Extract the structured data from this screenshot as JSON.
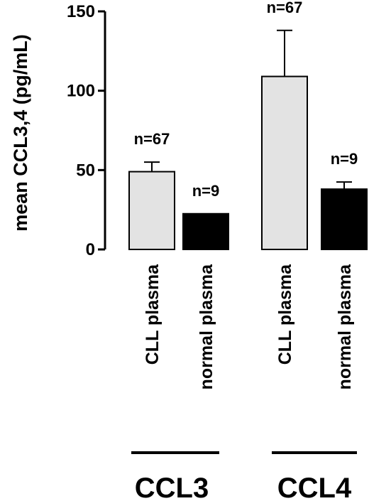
{
  "chart_data": {
    "type": "bar",
    "ylabel": "mean CCL3,4 (pg/mL)",
    "ylim": [
      0,
      150
    ],
    "yticks": [
      0,
      50,
      100,
      150
    ],
    "grid": false,
    "groups": [
      {
        "label": "CCL3",
        "bars": [
          {
            "category": "CLL plasma",
            "value": 49,
            "error": 6,
            "n_label": "n=67",
            "color": "#e3e3e3"
          },
          {
            "category": "normal plasma",
            "value": 22.5,
            "error": 0,
            "n_label": "n=9",
            "color": "#000000"
          }
        ]
      },
      {
        "label": "CCL4",
        "bars": [
          {
            "category": "CLL plasma",
            "value": 109,
            "error": 29,
            "n_label": "n=67",
            "color": "#e3e3e3"
          },
          {
            "category": "normal plasma",
            "value": 38,
            "error": 4.5,
            "n_label": "n=9",
            "color": "#000000"
          }
        ]
      }
    ]
  }
}
